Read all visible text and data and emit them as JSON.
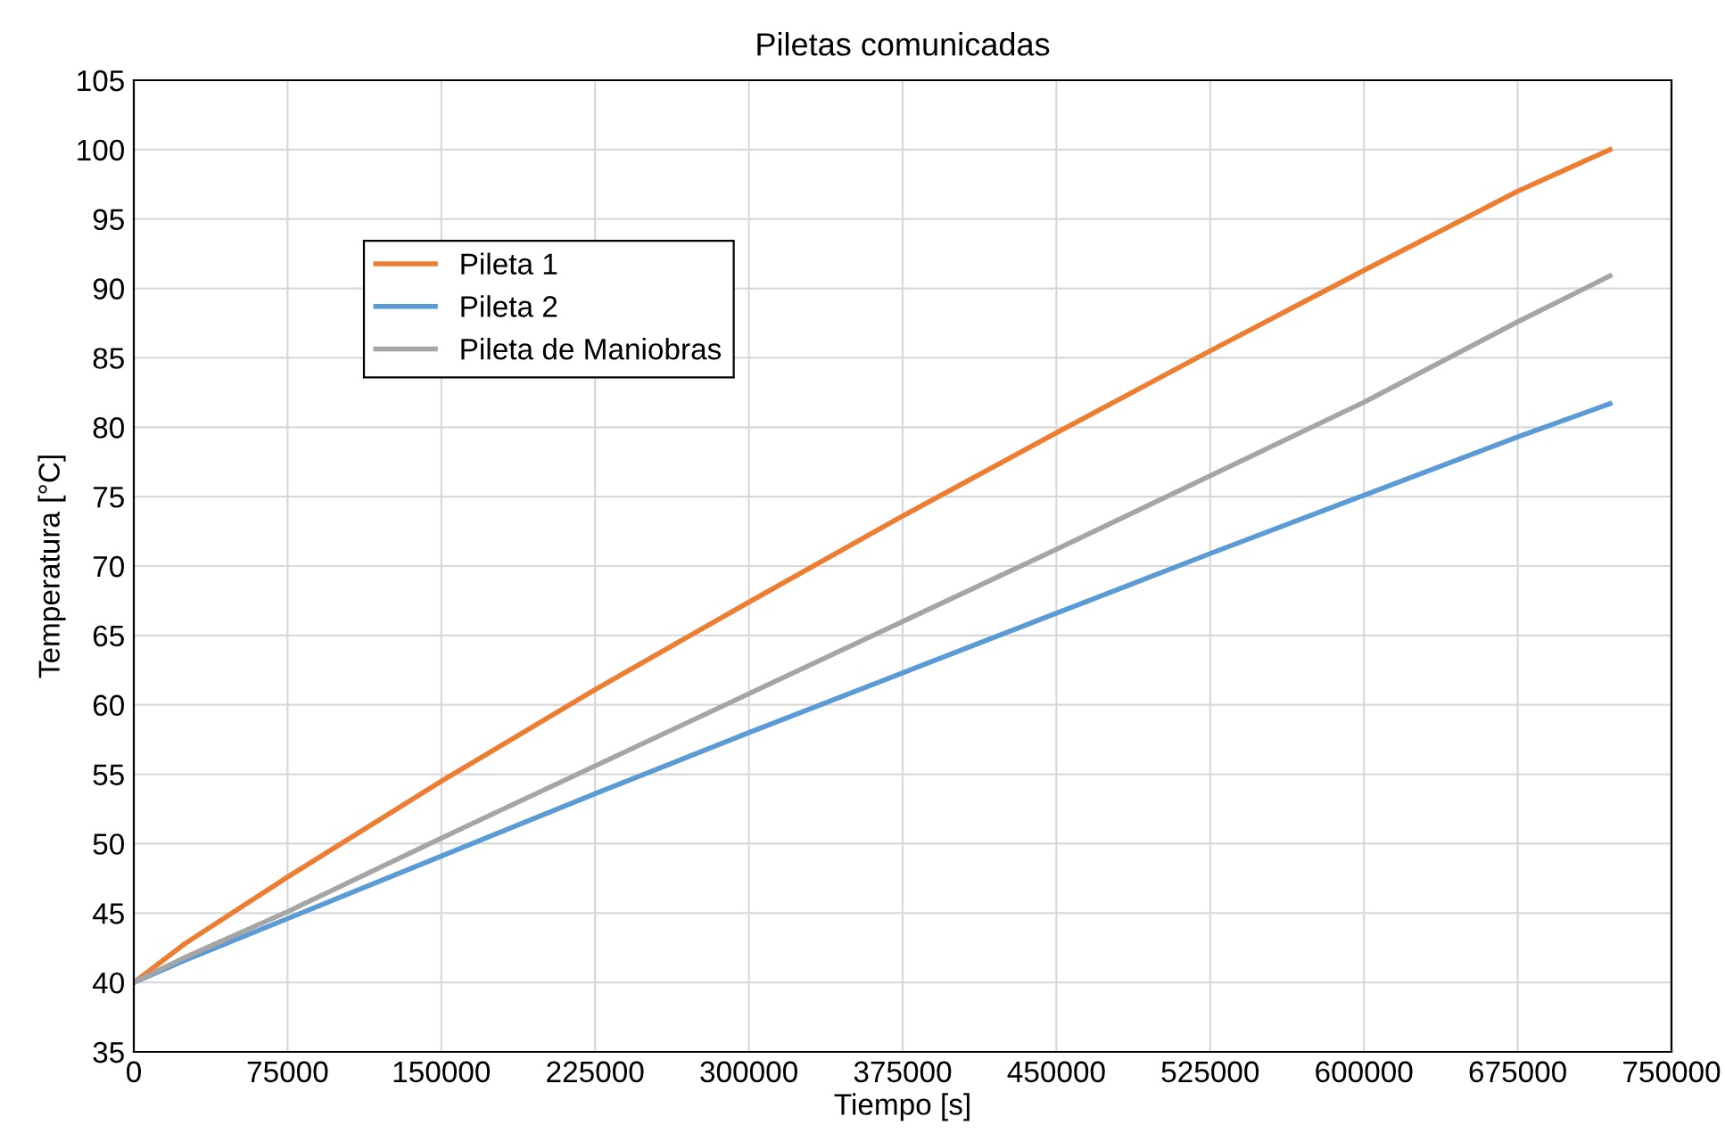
{
  "chart_data": {
    "type": "line",
    "title": "Piletas comunicadas",
    "xlabel": "Tiempo [s]",
    "ylabel": "Temperatura [°C]",
    "x": [
      0,
      25000,
      75000,
      150000,
      225000,
      300000,
      375000,
      450000,
      525000,
      600000,
      675000,
      720000
    ],
    "series": [
      {
        "name": "Pileta 1",
        "color": "#ed7d31",
        "values": [
          40,
          42.8,
          47.6,
          54.5,
          61.1,
          67.4,
          73.6,
          79.6,
          85.5,
          91.3,
          97.0,
          100
        ]
      },
      {
        "name": "Pileta 2",
        "color": "#5b9bd5",
        "values": [
          40,
          41.6,
          44.6,
          49.1,
          53.6,
          58.0,
          62.3,
          66.6,
          70.9,
          75.1,
          79.3,
          81.7
        ]
      },
      {
        "name": "Pileta de Maniobras",
        "color": "#a5a5a5",
        "values": [
          40,
          41.8,
          45.1,
          50.4,
          55.6,
          60.8,
          66.0,
          71.2,
          76.5,
          81.8,
          87.6,
          90.9
        ]
      }
    ],
    "xlim": [
      0,
      750000
    ],
    "xticks": [
      0,
      75000,
      150000,
      225000,
      300000,
      375000,
      450000,
      525000,
      600000,
      675000,
      750000
    ],
    "ylim": [
      35,
      105
    ],
    "yticks": [
      35,
      40,
      45,
      50,
      55,
      60,
      65,
      70,
      75,
      80,
      85,
      90,
      95,
      100,
      105
    ],
    "grid": true,
    "legend": "top left",
    "marker": "none",
    "line_style": "solid"
  }
}
